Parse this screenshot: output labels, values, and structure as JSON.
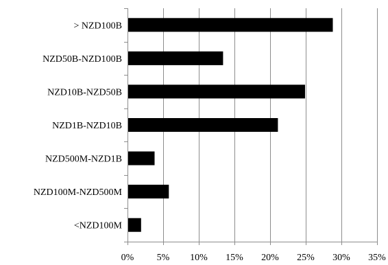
{
  "chart_data": {
    "type": "bar",
    "orientation": "horizontal",
    "categories": [
      "> NZD100B",
      "NZD50B-NZD100B",
      "NZD10B-NZD50B",
      "NZD1B-NZD10B",
      "NZD500M-NZD1B",
      "NZD100M-NZD500M",
      "<NZD100M"
    ],
    "values": [
      28.8,
      13.4,
      24.9,
      21.1,
      3.8,
      5.8,
      1.9
    ],
    "xlim": [
      0,
      35
    ],
    "x_ticks": [
      0,
      5,
      10,
      15,
      20,
      25,
      30,
      35
    ],
    "x_tick_labels": [
      "0%",
      "5%",
      "10%",
      "15%",
      "20%",
      "25%",
      "30%",
      "35%"
    ],
    "title": "",
    "xlabel": "",
    "ylabel": "",
    "grid": "vertical",
    "legend": "none",
    "bar_color": "#000000",
    "grid_color": "#8c8c8c"
  }
}
